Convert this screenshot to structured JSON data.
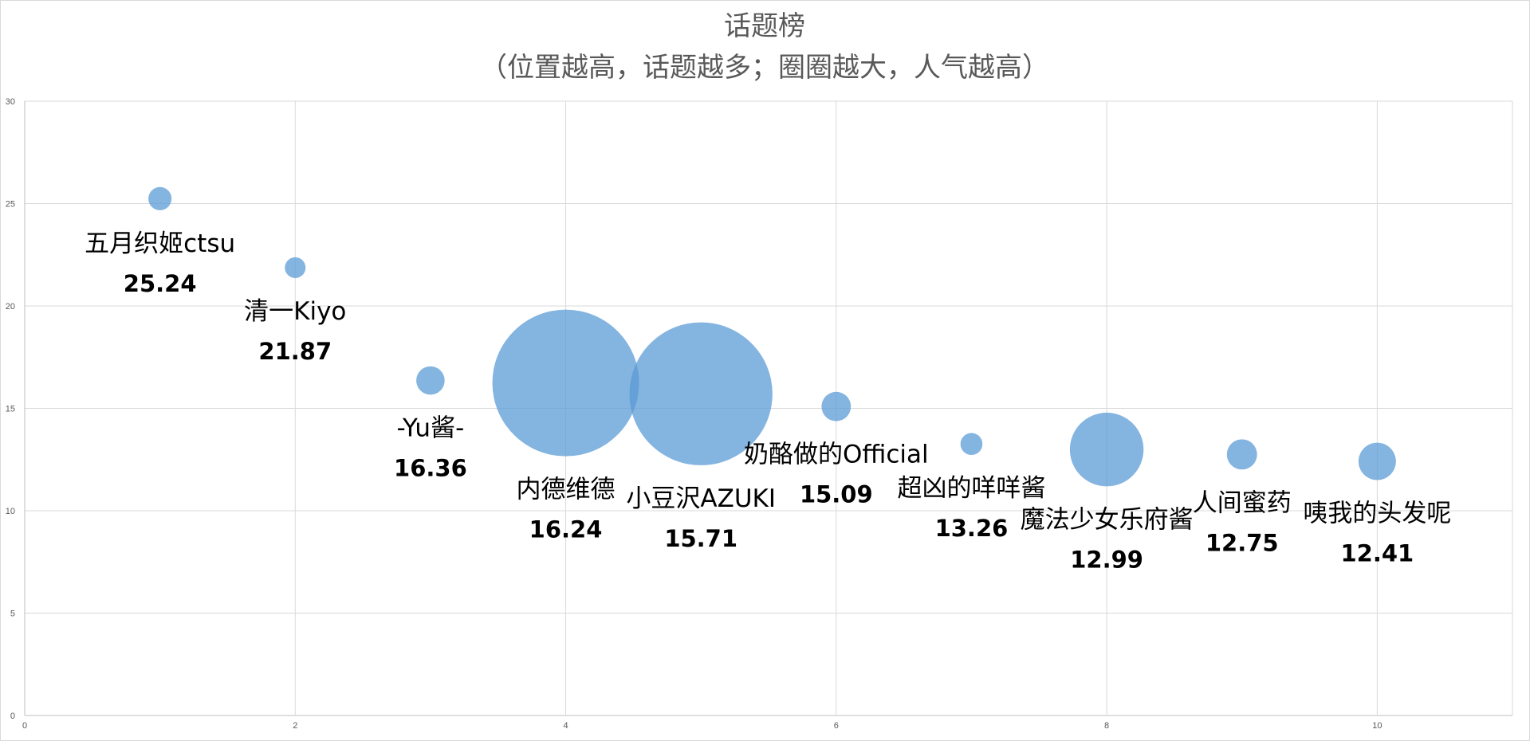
{
  "chart_data": {
    "type": "bubble",
    "title": "话题榜",
    "subtitle": "（位置越高，话题越多；圈圈越大，人气越高）",
    "xlim": [
      0,
      11
    ],
    "ylim": [
      0,
      30
    ],
    "x_ticks": [
      0,
      2,
      4,
      6,
      8,
      10
    ],
    "y_ticks": [
      0,
      5,
      10,
      15,
      20,
      25,
      30
    ],
    "grid": true,
    "bubble_color": "#5B9BD5",
    "points": [
      {
        "name": "五月织姬ctsu",
        "x": 1,
        "y": 25.24,
        "value_label": "25.24",
        "size": 1
      },
      {
        "name": "清一Kiyo",
        "x": 2,
        "y": 21.87,
        "value_label": "21.87",
        "size": 0.8
      },
      {
        "name": "-Yu酱-",
        "x": 3,
        "y": 16.36,
        "value_label": "16.36",
        "size": 1.5
      },
      {
        "name": "内德维德",
        "x": 4,
        "y": 16.24,
        "value_label": "16.24",
        "size": 40
      },
      {
        "name": "小豆沢AZUKI",
        "x": 5,
        "y": 15.71,
        "value_label": "15.71",
        "size": 38
      },
      {
        "name": "奶酪做的Official",
        "x": 6,
        "y": 15.09,
        "value_label": "15.09",
        "size": 1.6
      },
      {
        "name": "超凶的咩咩酱",
        "x": 7,
        "y": 13.26,
        "value_label": "13.26",
        "size": 0.9
      },
      {
        "name": "魔法少女乐府酱",
        "x": 8,
        "y": 12.99,
        "value_label": "12.99",
        "size": 10.1
      },
      {
        "name": "人间蜜药",
        "x": 9,
        "y": 12.75,
        "value_label": "12.75",
        "size": 1.7
      },
      {
        "name": "咦我的头发呢",
        "x": 10,
        "y": 12.41,
        "value_label": "12.41",
        "size": 2.6
      }
    ]
  }
}
